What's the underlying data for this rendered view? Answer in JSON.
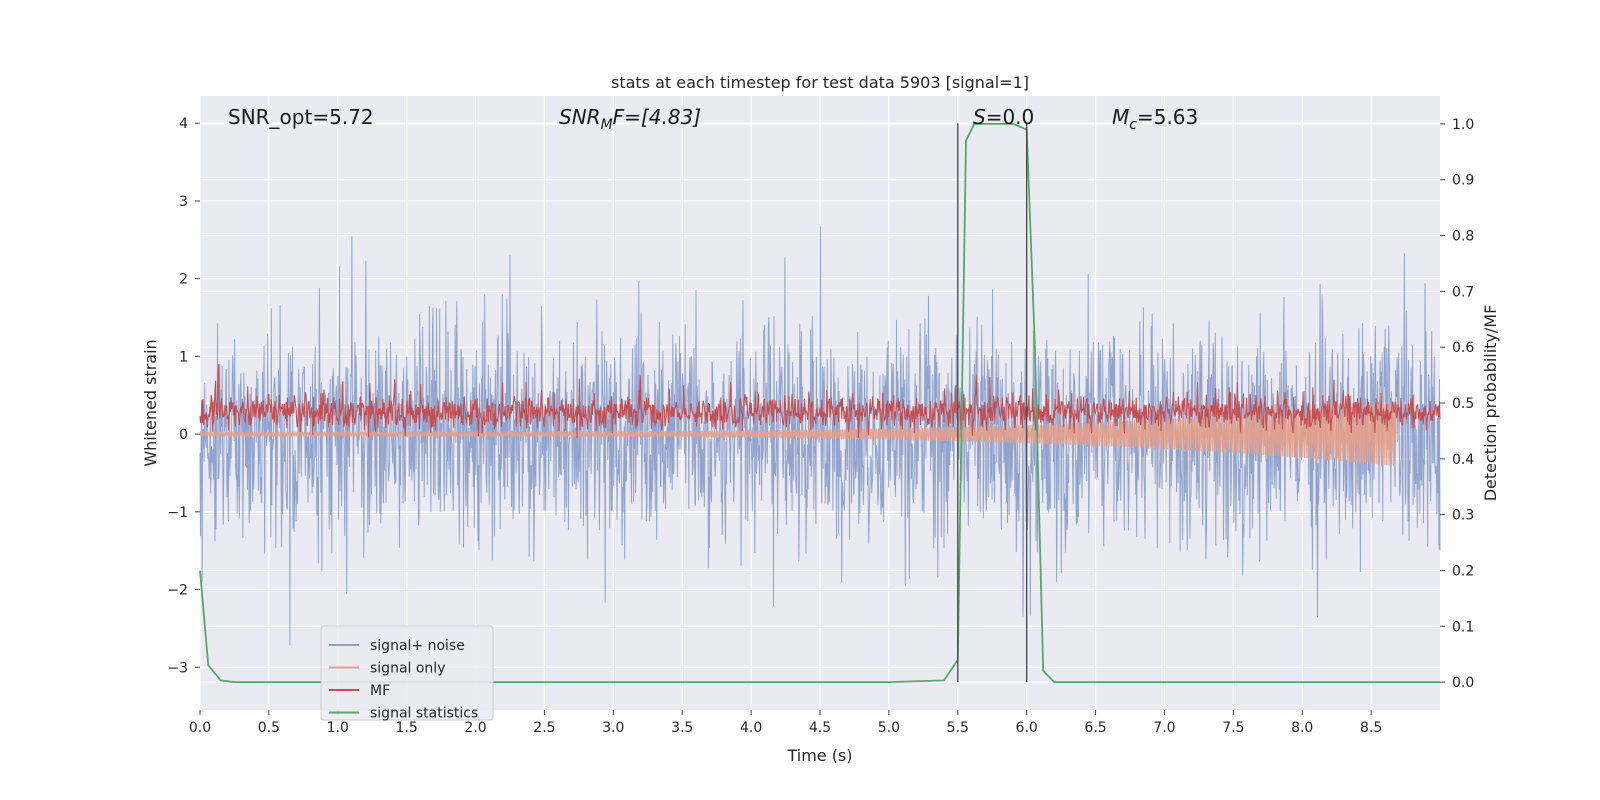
{
  "chart_data": {
    "type": "line",
    "title": "stats at each timestep for test data 5903 [signal=1]",
    "xlabel": "Time (s)",
    "ylabel_left": "Whitened strain",
    "ylabel_right": "Detection probability/MF",
    "xlim": [
      0,
      9.0
    ],
    "ylim_left": [
      -3.55,
      4.35
    ],
    "ylim_right": [
      -0.05,
      1.05
    ],
    "x_ticks": [
      "0.0",
      "0.5",
      "1.0",
      "1.5",
      "2.0",
      "2.5",
      "3.0",
      "3.5",
      "4.0",
      "4.5",
      "5.0",
      "5.5",
      "6.0",
      "6.5",
      "7.0",
      "7.5",
      "8.0",
      "8.5"
    ],
    "x_tick_values": [
      0,
      0.5,
      1.0,
      1.5,
      2.0,
      2.5,
      3.0,
      3.5,
      4.0,
      4.5,
      5.0,
      5.5,
      6.0,
      6.5,
      7.0,
      7.5,
      8.0,
      8.5
    ],
    "y_ticks_left": [
      "−3",
      "−2",
      "−1",
      "0",
      "1",
      "2",
      "3",
      "4"
    ],
    "y_tick_values_left": [
      -3,
      -2,
      -1,
      0,
      1,
      2,
      3,
      4
    ],
    "y_ticks_right": [
      "0.0",
      "0.1",
      "0.2",
      "0.3",
      "0.4",
      "0.5",
      "0.6",
      "0.7",
      "0.8",
      "0.9",
      "1.0"
    ],
    "y_tick_values_right": [
      0,
      0.1,
      0.2,
      0.3,
      0.4,
      0.5,
      0.6,
      0.7,
      0.8,
      0.9,
      1.0
    ],
    "grid": true,
    "legend_placement": "lower-left",
    "annotations": {
      "snr_opt": "SNR_opt=5.72",
      "snr_mf_sym": "SNR",
      "snr_mf_sub": "M",
      "snr_mf_rest": "F=[4.83]",
      "s_sym": "S",
      "s_rest": "=0.0",
      "mc_sym": "M",
      "mc_sub": "c",
      "mc_rest": "=5.63"
    },
    "vertical_lines_x": [
      5.5,
      6.0
    ],
    "series": [
      {
        "name": "signal+ noise",
        "color": "#8da0cb",
        "kind": "noise",
        "axis": "left",
        "std": 0.72,
        "mean": 0.0
      },
      {
        "name": "signal only",
        "color": "#e5a08a",
        "kind": "chirp",
        "axis": "left",
        "end_x": 8.68,
        "max_amp": 0.38
      },
      {
        "name": "MF",
        "color": "#c44e52",
        "kind": "mf",
        "axis": "left",
        "mean": 0.28,
        "std": 0.11
      },
      {
        "name": "signal statistics",
        "color": "#55a868",
        "kind": "line",
        "axis": "right",
        "x": [
          0.0,
          0.06,
          0.15,
          0.25,
          0.5,
          1.0,
          2.0,
          3.0,
          4.0,
          5.0,
          5.4,
          5.5,
          5.56,
          5.62,
          5.7,
          5.8,
          5.9,
          6.0,
          6.06,
          6.12,
          6.2,
          6.5,
          7.0,
          8.0,
          9.0
        ],
        "y": [
          0.2,
          0.03,
          0.003,
          0.0,
          0.0,
          0.0,
          0.0,
          0.0,
          0.0,
          0.0,
          0.003,
          0.04,
          0.97,
          1.0,
          1.0,
          1.0,
          1.0,
          0.99,
          0.6,
          0.02,
          0.0,
          0.0,
          0.0,
          0.0,
          0.0
        ]
      }
    ]
  }
}
